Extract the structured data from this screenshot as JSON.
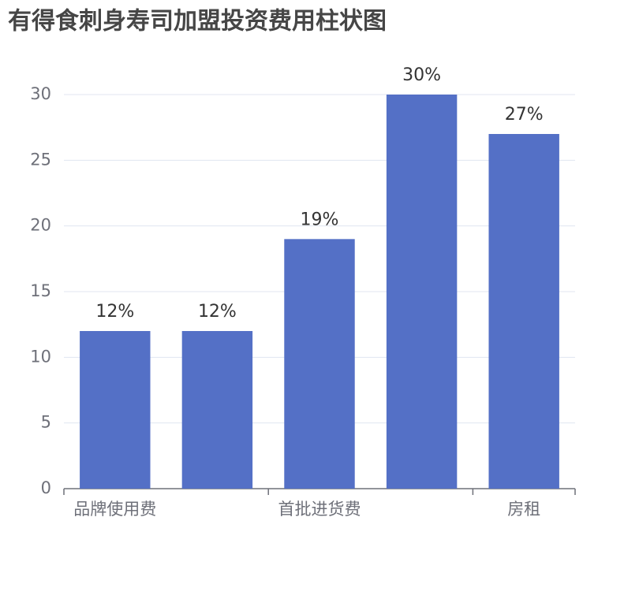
{
  "chart_data": {
    "type": "bar",
    "title": "有得食刺身寿司加盟投资费用柱状图",
    "categories": [
      "品牌使用费",
      null,
      "首批进货费",
      null,
      "房租"
    ],
    "values": [
      12,
      12,
      19,
      30,
      27
    ],
    "value_labels": [
      "12%",
      "12%",
      "19%",
      "30%",
      "27%"
    ],
    "color": "#5470c6",
    "ylim": [
      0,
      30
    ],
    "yticks": [
      0,
      5,
      10,
      15,
      20,
      25,
      30
    ],
    "grid": true
  }
}
